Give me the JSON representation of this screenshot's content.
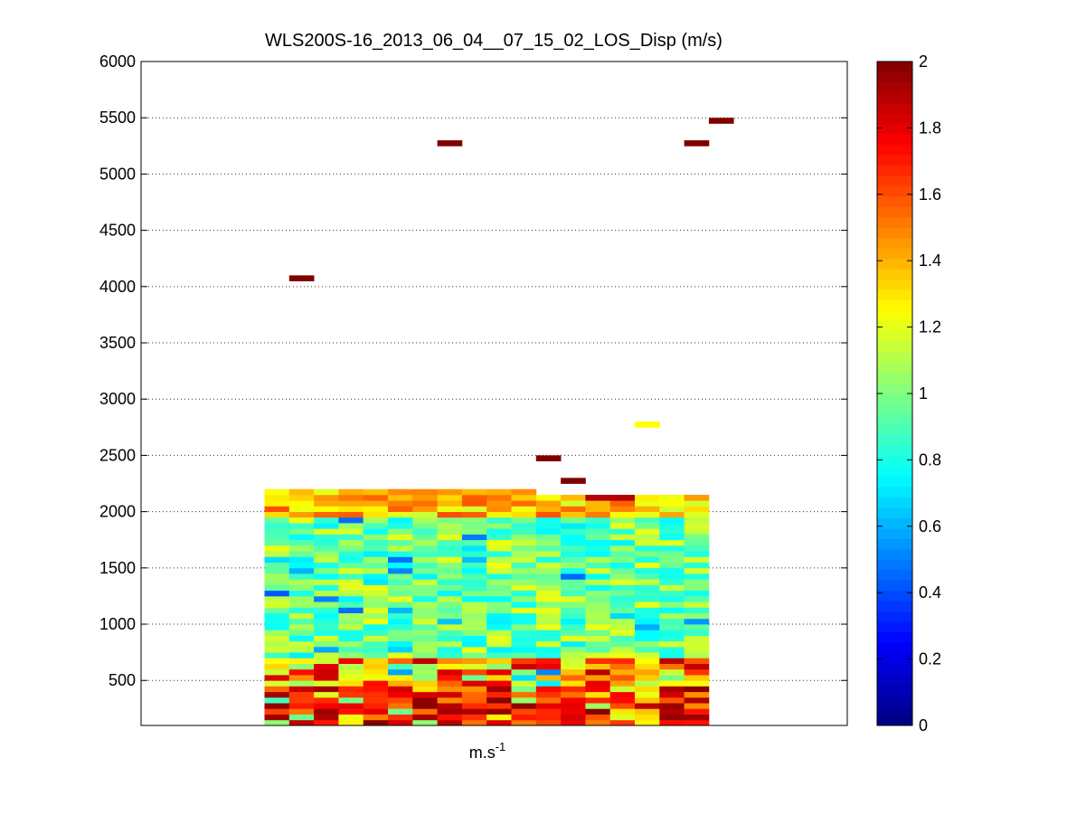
{
  "chart_data": {
    "type": "heatmap",
    "title": "WLS200S-16_2013_06_04__07_15_02_LOS_Disp (m/s)",
    "xlabel": "m.s",
    "xlabel_superscript": "-1",
    "ylabel": "",
    "ylim": [
      100,
      6000
    ],
    "yticks": [
      500,
      1000,
      1500,
      2000,
      2500,
      3000,
      3500,
      4000,
      4500,
      5000,
      5500,
      6000
    ],
    "ygrid": "dotted",
    "columns": 18,
    "colorbar": {
      "colormap": "jet",
      "range": [
        0,
        2
      ],
      "ticks": [
        0,
        0.2,
        0.4,
        0.6,
        0.8,
        1,
        1.2,
        1.4,
        1.6,
        1.8,
        2
      ],
      "placement": "right"
    },
    "range_gate_m": 50,
    "dense_block": {
      "column_first": 5,
      "column_last": 22,
      "altitude_min": 100,
      "altitude_max_left": 2200,
      "altitude_max_right": 2150,
      "value_range": [
        0,
        2
      ],
      "note_values": "near-surface gates 100-650 m mostly 1.2-2; mid gates 0.6-1.2; top gates 1.2-1.6"
    },
    "isolated_cells": [
      {
        "column": 6,
        "altitude": 4050,
        "value": 2
      },
      {
        "column": 12,
        "altitude": 5250,
        "value": 2
      },
      {
        "column": 22,
        "altitude": 5250,
        "value": 2
      },
      {
        "column": 23,
        "altitude": 5450,
        "value": 2
      },
      {
        "column": 20,
        "altitude": 2750,
        "value": 1.25
      },
      {
        "column": 16,
        "altitude": 2450,
        "value": 2
      },
      {
        "column": 17,
        "altitude": 2250,
        "value": 2
      }
    ]
  }
}
